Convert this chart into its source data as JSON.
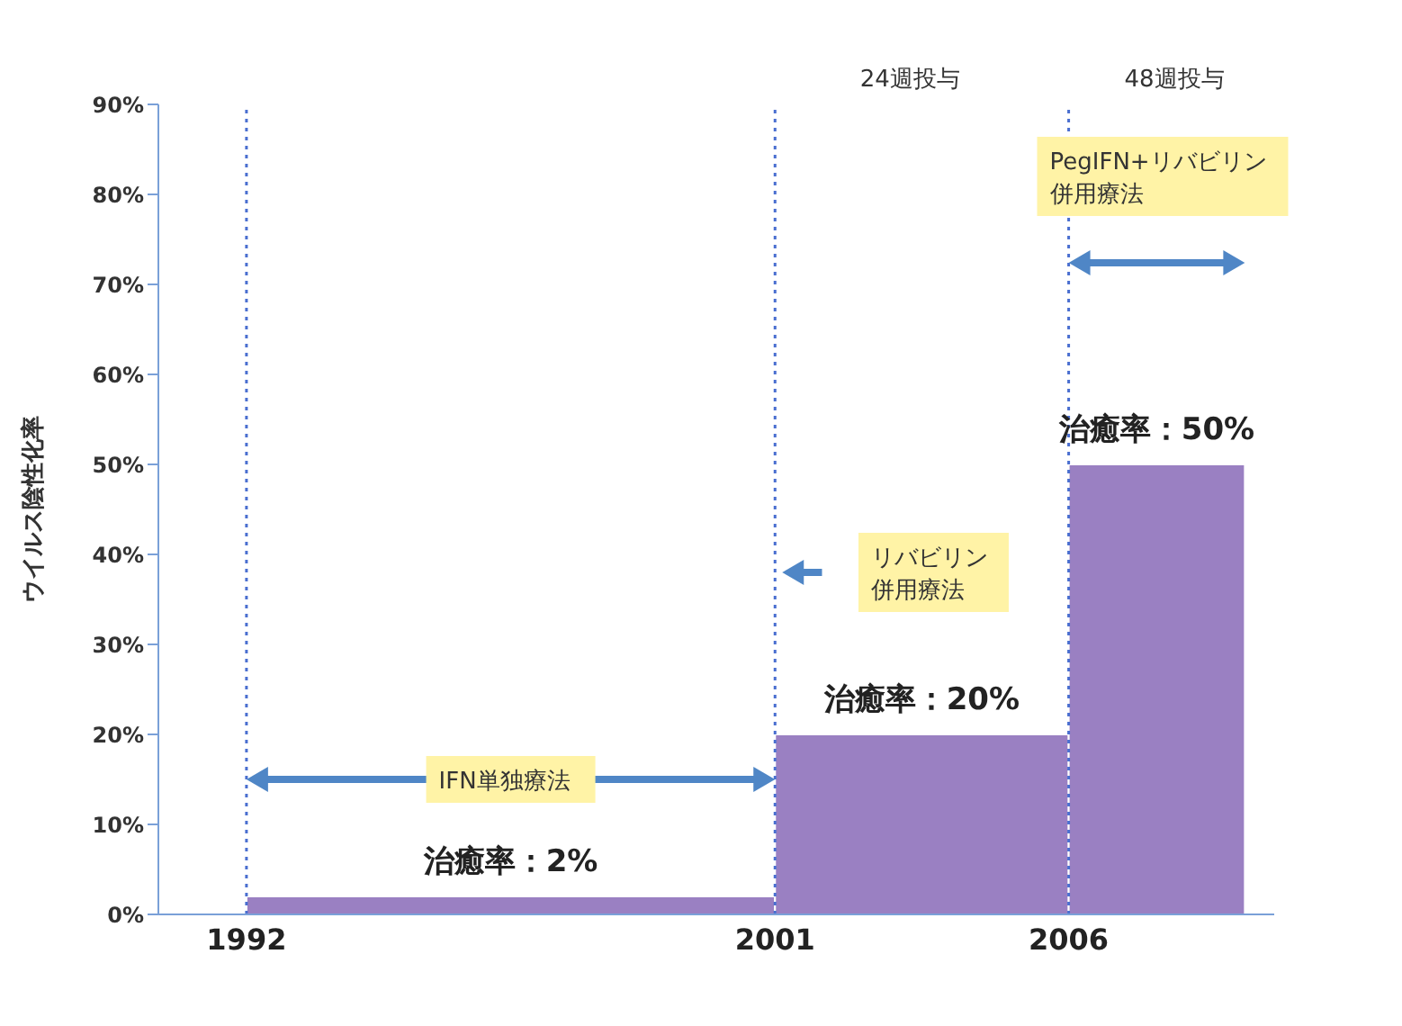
{
  "chart_data": {
    "type": "histogram",
    "ylabel": "ウイルス陰性化率",
    "bins": [
      1992,
      2001,
      2006,
      2009
    ],
    "values": [
      2,
      20,
      50
    ],
    "value_labels": [
      "治癒率：2%",
      "治癒率：20%",
      "治癒率：50%"
    ],
    "color": "#9a80c2",
    "xlim": [
      1990.5,
      2009.5
    ],
    "xticks": [
      1992,
      2001,
      2006
    ],
    "ylim": [
      0,
      90
    ],
    "yticks": [
      {
        "value": 0,
        "label": "0%"
      },
      {
        "value": 10,
        "label": "10%"
      },
      {
        "value": 20,
        "label": "20%"
      },
      {
        "value": 30,
        "label": "30%"
      },
      {
        "value": 40,
        "label": "40%"
      },
      {
        "value": 50,
        "label": "50%"
      },
      {
        "value": 60,
        "label": "60%"
      },
      {
        "value": 70,
        "label": "70%"
      },
      {
        "value": 80,
        "label": "80%"
      },
      {
        "value": 90,
        "label": "90%"
      }
    ],
    "ref_lines": [
      {
        "axis": "x",
        "value": 1992,
        "color": "#4a6fd0",
        "line_style": "dotted"
      },
      {
        "axis": "x",
        "value": 2001,
        "color": "#4a6fd0",
        "line_style": "dotted"
      },
      {
        "axis": "x",
        "value": 2006,
        "color": "#4a6fd0",
        "line_style": "dotted"
      }
    ],
    "annotations": [
      "IFN単独療法",
      "リバビリン併用療法",
      "PegIFN+リバビリン併用療法",
      "24週投与",
      "48週投与"
    ]
  }
}
